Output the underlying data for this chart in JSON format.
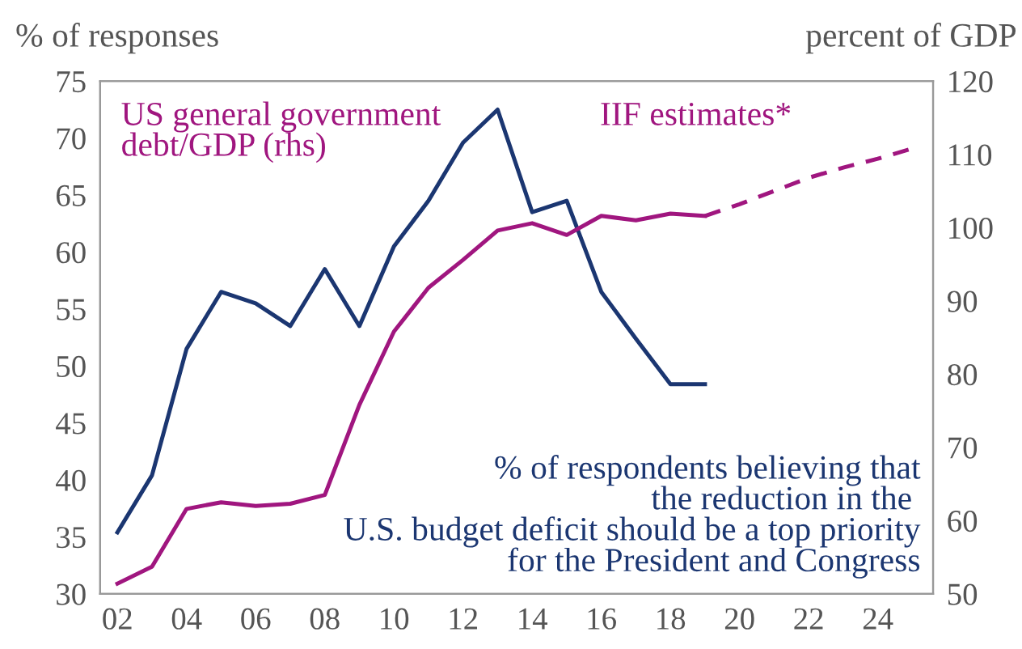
{
  "chart_data": {
    "type": "line",
    "ylabel": "% of responses",
    "y2label": "percent of GDP",
    "xlim": [
      2001.5,
      2025.6
    ],
    "xticks": [
      {
        "value": 2002,
        "label": "02"
      },
      {
        "value": 2004,
        "label": "04"
      },
      {
        "value": 2006,
        "label": "06"
      },
      {
        "value": 2008,
        "label": "08"
      },
      {
        "value": 2010,
        "label": "10"
      },
      {
        "value": 2012,
        "label": "12"
      },
      {
        "value": 2014,
        "label": "14"
      },
      {
        "value": 2016,
        "label": "16"
      },
      {
        "value": 2018,
        "label": "18"
      },
      {
        "value": 2020,
        "label": "20"
      },
      {
        "value": 2022,
        "label": "22"
      },
      {
        "value": 2024,
        "label": "24"
      }
    ],
    "ylim": [
      30,
      75
    ],
    "yticks": [
      30,
      35,
      40,
      45,
      50,
      55,
      60,
      65,
      70,
      75
    ],
    "y2lim": [
      50,
      120
    ],
    "y2ticks": [
      50,
      60,
      70,
      80,
      90,
      100,
      110,
      120
    ],
    "annotations": [
      "IIF estimates*"
    ],
    "grid": false,
    "legend": false,
    "series": [
      {
        "name": "% of respondents believing that\nthe reduction in the \nU.S. budget deficit should be a top priority\nfor the President and Congress",
        "color": "#1b3671",
        "x": [
          2002,
          2003,
          2004,
          2005,
          2006,
          2007,
          2008,
          2009,
          2010,
          2011,
          2012,
          2013,
          2014,
          2015,
          2016,
          2017,
          2018,
          2019
        ],
        "values": [
          35.4,
          40.4,
          51.5,
          56.5,
          55.5,
          53.5,
          58.5,
          53.5,
          60.5,
          64.5,
          69.6,
          72.5,
          63.5,
          64.5,
          56.5,
          52.4,
          48.4,
          48.4
        ],
        "line_style": "solid"
      },
      {
        "name": "US general government\ndebt/GDP (rhs)",
        "color": "#a0167f",
        "axis": "y2",
        "x": [
          2002,
          2003,
          2004,
          2005,
          2006,
          2007,
          2008,
          2009,
          2010,
          2011,
          2012,
          2013,
          2014,
          2015,
          2016,
          2017,
          2018,
          2019
        ],
        "values": [
          51.4,
          53.7,
          61.6,
          62.5,
          62,
          62.3,
          63.5,
          75.8,
          85.8,
          91.8,
          95.6,
          99.6,
          100.6,
          99,
          101.6,
          101,
          101.9,
          101.6
        ],
        "line_style": "solid"
      },
      {
        "color": "#a0167f",
        "axis": "y2",
        "x": [
          2019,
          2020,
          2021,
          2022,
          2023,
          2024,
          2025
        ],
        "values": [
          101.6,
          103.2,
          105,
          106.8,
          108.2,
          109.4,
          110.8
        ],
        "line_style": "dashed"
      }
    ]
  }
}
